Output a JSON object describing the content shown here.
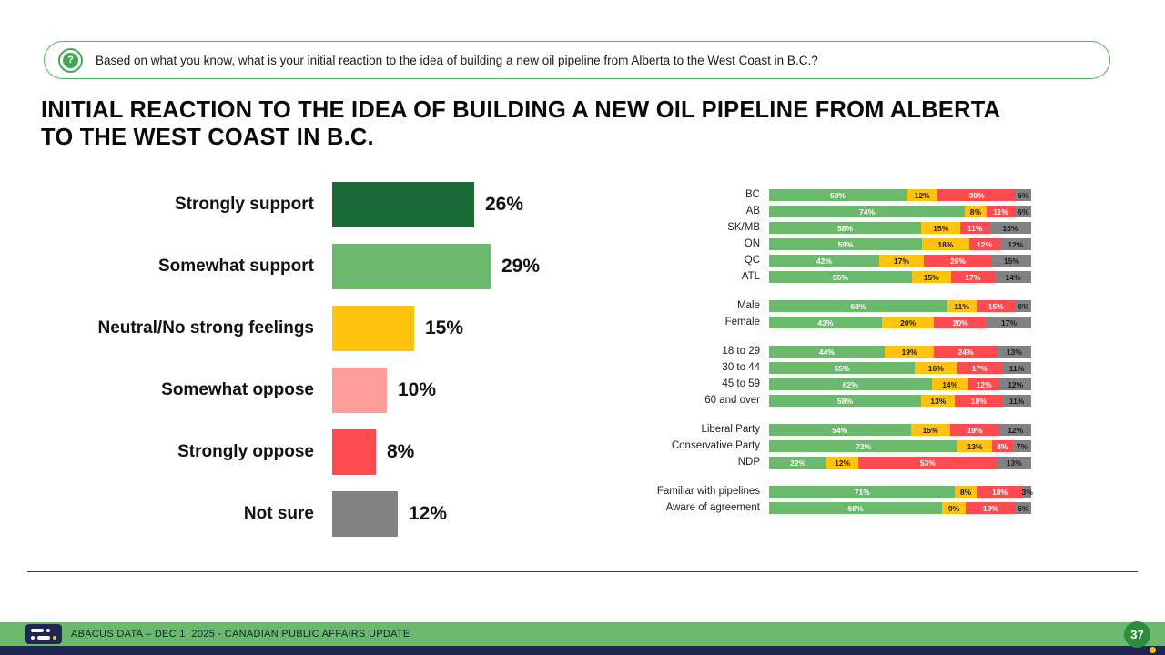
{
  "question": {
    "text": "Based on what you know, what is your initial reaction to the idea of building a new oil pipeline from Alberta to the West Coast in B.C.?",
    "icon": "question-mark-icon"
  },
  "title_lines": [
    "INITIAL REACTION TO THE IDEA OF BUILDING A NEW OIL PIPELINE FROM ALBERTA",
    "TO THE WEST COAST IN B.C."
  ],
  "palette": {
    "strongly_support_green": "#1a6b37",
    "support_green": "#6ab96d",
    "neutral_yellow": "#ffc20e",
    "somewhat_oppose_pink": "#ff9d9b",
    "oppose_red": "#ff4b50",
    "not_sure_gray": "#828282",
    "footer_green": "#6ab96d",
    "navy": "#1e2753",
    "accent_yellow": "#ffc20e"
  },
  "chart_data": [
    {
      "type": "bar",
      "title": "Overall initial reaction",
      "orientation": "horizontal",
      "categories": [
        "Strongly support",
        "Somewhat support",
        "Neutral/No strong feelings",
        "Somewhat oppose",
        "Strongly oppose",
        "Not sure"
      ],
      "values": [
        26,
        29,
        15,
        10,
        8,
        12
      ],
      "value_suffix": "%",
      "bar_colors": [
        "#1a6b37",
        "#6ab96d",
        "#ffc20e",
        "#ff9d9b",
        "#ff4b50",
        "#828282"
      ],
      "xlim": [
        0,
        100
      ],
      "grid": false,
      "legend": "none"
    },
    {
      "type": "bar",
      "subtype": "stacked",
      "title": "Initial reaction by subgroup",
      "orientation": "horizontal",
      "series": [
        "Support",
        "Neutral",
        "Oppose",
        "Not sure"
      ],
      "series_colors": [
        "#6ab96d",
        "#ffc20e",
        "#ff4b50",
        "#828282"
      ],
      "series_text_colors": [
        "#ffffff",
        "#1a1a1a",
        "#ffffff",
        "#1a1a1a"
      ],
      "xlim": [
        0,
        100
      ],
      "grid": false,
      "legend": "none",
      "groups": [
        {
          "name": "region",
          "rows": [
            {
              "label": "BC",
              "values": [
                53,
                12,
                30,
                6
              ]
            },
            {
              "label": "AB",
              "values": [
                74,
                8,
                11,
                6
              ]
            },
            {
              "label": "SK/MB",
              "values": [
                58,
                15,
                11,
                16
              ]
            },
            {
              "label": "ON",
              "values": [
                59,
                18,
                12,
                12
              ]
            },
            {
              "label": "QC",
              "values": [
                42,
                17,
                26,
                15
              ]
            },
            {
              "label": "ATL",
              "values": [
                55,
                15,
                17,
                14
              ]
            }
          ]
        },
        {
          "name": "gender",
          "rows": [
            {
              "label": "Male",
              "values": [
                68,
                11,
                15,
                6
              ]
            },
            {
              "label": "Female",
              "values": [
                43,
                20,
                20,
                17
              ]
            }
          ]
        },
        {
          "name": "age",
          "rows": [
            {
              "label": "18 to 29",
              "values": [
                44,
                19,
                24,
                13
              ]
            },
            {
              "label": "30 to 44",
              "values": [
                55,
                16,
                17,
                11
              ]
            },
            {
              "label": "45 to 59",
              "values": [
                62,
                14,
                12,
                12
              ]
            },
            {
              "label": "60 and over",
              "values": [
                58,
                13,
                18,
                11
              ]
            }
          ]
        },
        {
          "name": "party",
          "rows": [
            {
              "label": "Liberal Party",
              "values": [
                54,
                15,
                19,
                12
              ]
            },
            {
              "label": "Conservative Party",
              "values": [
                72,
                13,
                8,
                7
              ]
            },
            {
              "label": "NDP",
              "values": [
                22,
                12,
                53,
                13
              ]
            }
          ]
        },
        {
          "name": "awareness",
          "rows": [
            {
              "label": "Familiar with pipelines",
              "values": [
                71,
                8,
                18,
                3
              ]
            },
            {
              "label": "Aware of agreement",
              "values": [
                66,
                9,
                19,
                6
              ]
            }
          ]
        }
      ]
    }
  ],
  "footer": {
    "text": "ABACUS DATA – DEC 1, 2025 - CANADIAN PUBLIC AFFAIRS UPDATE",
    "page_number": "37"
  }
}
